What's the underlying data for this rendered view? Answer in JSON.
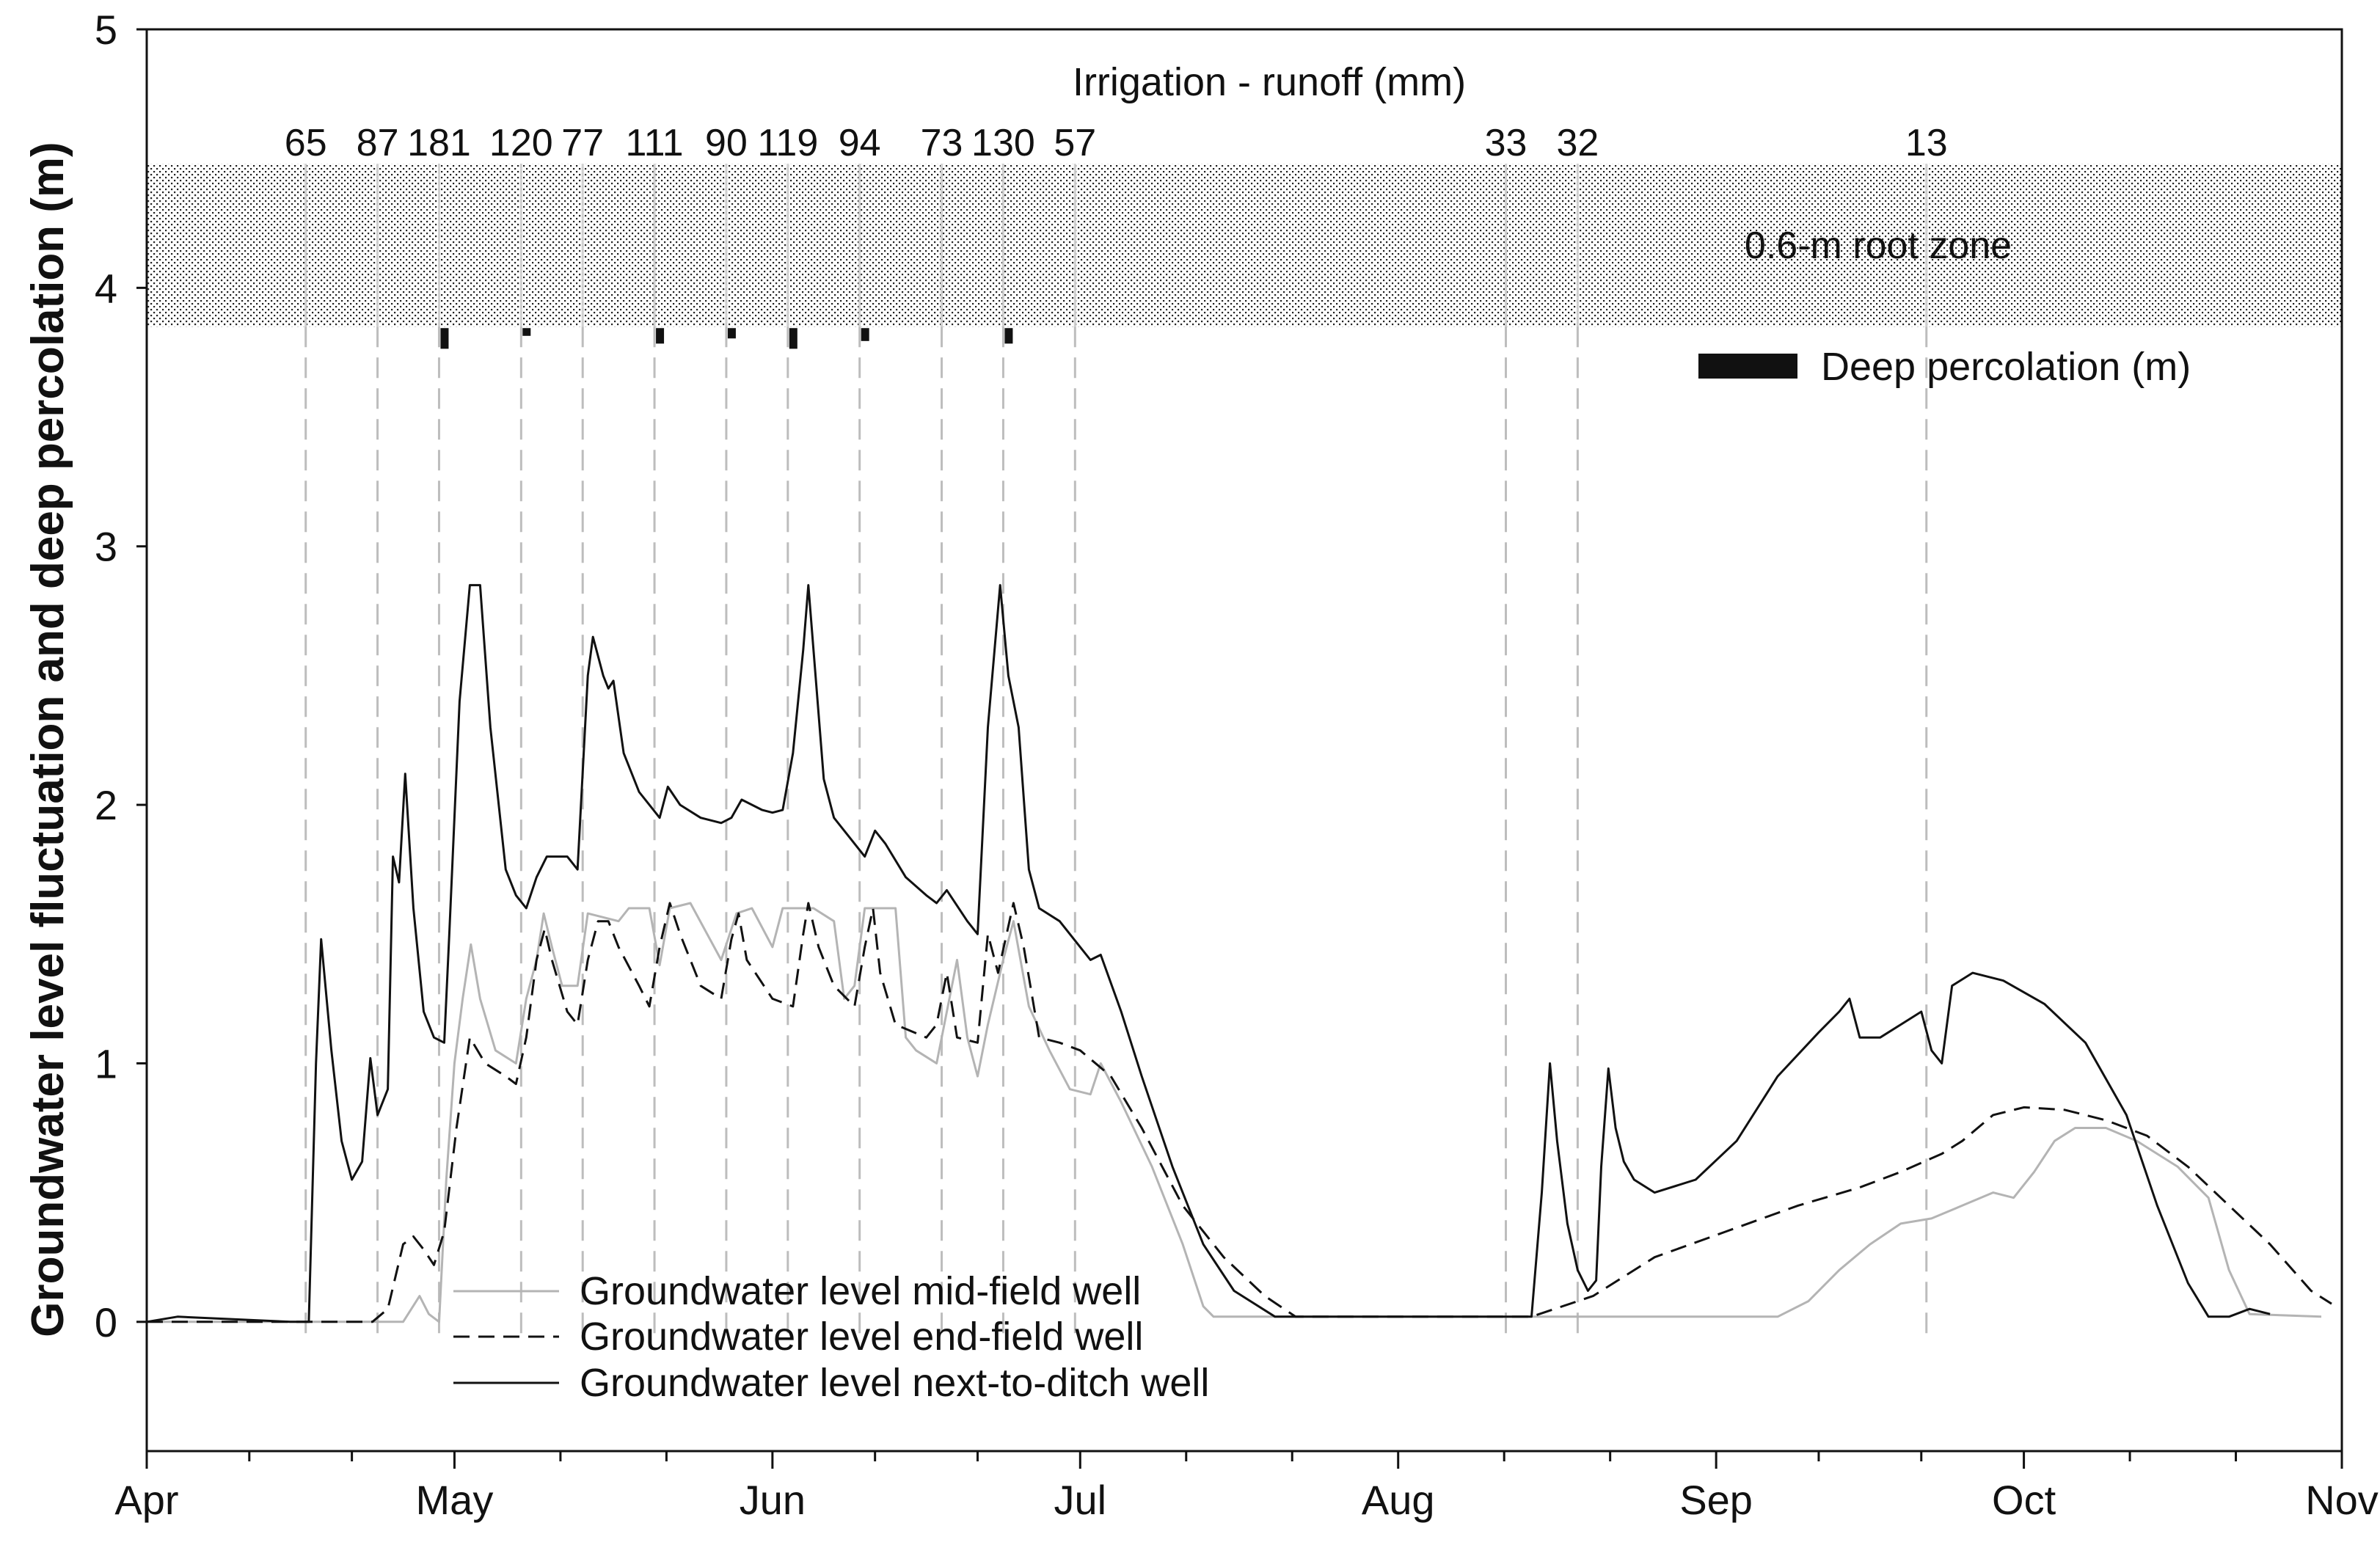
{
  "chart_data": {
    "type": "line",
    "title": "",
    "ylabel": "Groundwater level fluctuation and deep percolation (m)",
    "xlabel": "",
    "ylim": [
      -0.5,
      5
    ],
    "yticks": [
      "0",
      "1",
      "2",
      "3",
      "4",
      "5"
    ],
    "x_unit": "day of year",
    "xlim": [
      91,
      305
    ],
    "month_labels": [
      {
        "label": "Apr",
        "day": 91
      },
      {
        "label": "May",
        "day": 121
      },
      {
        "label": "Jun",
        "day": 152
      },
      {
        "label": "Jul",
        "day": 182
      },
      {
        "label": "Aug",
        "day": 213
      },
      {
        "label": "Sep",
        "day": 244
      },
      {
        "label": "Oct",
        "day": 274
      },
      {
        "label": "Nov",
        "day": 305
      }
    ],
    "root_zone": {
      "label": "0.6-m  root zone",
      "y_low": 3.85,
      "y_high": 4.48
    },
    "irrigation": {
      "header": "Irrigation - runoff (mm)",
      "events": [
        {
          "day": 106.5,
          "value": "65"
        },
        {
          "day": 113.5,
          "value": "87"
        },
        {
          "day": 119.5,
          "value": "181"
        },
        {
          "day": 127.5,
          "value": "120"
        },
        {
          "day": 133.5,
          "value": "77"
        },
        {
          "day": 140.5,
          "value": "111"
        },
        {
          "day": 147.5,
          "value": "90"
        },
        {
          "day": 153.5,
          "value": "119"
        },
        {
          "day": 160.5,
          "value": "94"
        },
        {
          "day": 168.5,
          "value": "73"
        },
        {
          "day": 174.5,
          "value": "130"
        },
        {
          "day": 181.5,
          "value": "57"
        },
        {
          "day": 223.5,
          "value": "33"
        },
        {
          "day": 230.5,
          "value": "32"
        },
        {
          "day": 264.5,
          "value": "13"
        }
      ]
    },
    "deep_percolation": {
      "label": "Deep percolation (m)",
      "bars": [
        {
          "day": 120,
          "value": 0.08
        },
        {
          "day": 128,
          "value": 0.03
        },
        {
          "day": 141,
          "value": 0.06
        },
        {
          "day": 148,
          "value": 0.04
        },
        {
          "day": 154,
          "value": 0.08
        },
        {
          "day": 161,
          "value": 0.05
        },
        {
          "day": 175,
          "value": 0.06
        }
      ]
    },
    "series": [
      {
        "name": "Groundwater level mid-field well",
        "style": "solid",
        "color": "#b4b4b4",
        "points": [
          [
            91,
            0
          ],
          [
            103,
            0
          ],
          [
            116,
            0
          ],
          [
            117.6,
            0.1
          ],
          [
            118.5,
            0.03
          ],
          [
            119.5,
            0
          ],
          [
            120.2,
            0.55
          ],
          [
            121,
            1.0
          ],
          [
            121.8,
            1.25
          ],
          [
            122.6,
            1.46
          ],
          [
            123.5,
            1.25
          ],
          [
            125,
            1.05
          ],
          [
            127,
            1.0
          ],
          [
            128,
            1.25
          ],
          [
            129,
            1.4
          ],
          [
            129.7,
            1.58
          ],
          [
            130.5,
            1.45
          ],
          [
            131.5,
            1.3
          ],
          [
            133,
            1.3
          ],
          [
            134,
            1.58
          ],
          [
            137,
            1.55
          ],
          [
            138,
            1.6
          ],
          [
            140,
            1.6
          ],
          [
            141,
            1.38
          ],
          [
            142,
            1.6
          ],
          [
            144,
            1.62
          ],
          [
            147,
            1.4
          ],
          [
            148.5,
            1.58
          ],
          [
            150,
            1.6
          ],
          [
            152,
            1.45
          ],
          [
            153,
            1.6
          ],
          [
            156,
            1.6
          ],
          [
            158,
            1.55
          ],
          [
            159,
            1.25
          ],
          [
            160,
            1.3
          ],
          [
            161,
            1.6
          ],
          [
            164,
            1.6
          ],
          [
            165,
            1.1
          ],
          [
            166,
            1.05
          ],
          [
            168,
            1.0
          ],
          [
            170,
            1.4
          ],
          [
            171,
            1.1
          ],
          [
            172,
            0.95
          ],
          [
            173,
            1.15
          ],
          [
            174.5,
            1.4
          ],
          [
            175.5,
            1.55
          ],
          [
            177,
            1.22
          ],
          [
            179,
            1.05
          ],
          [
            181,
            0.9
          ],
          [
            183,
            0.88
          ],
          [
            184,
            1.0
          ],
          [
            186,
            0.85
          ],
          [
            189,
            0.6
          ],
          [
            192,
            0.3
          ],
          [
            194,
            0.06
          ],
          [
            195,
            0.02
          ],
          [
            224,
            0.02
          ],
          [
            250,
            0.02
          ],
          [
            253,
            0.08
          ],
          [
            256,
            0.2
          ],
          [
            259,
            0.3
          ],
          [
            262,
            0.38
          ],
          [
            265,
            0.4
          ],
          [
            268,
            0.45
          ],
          [
            271,
            0.5
          ],
          [
            273,
            0.48
          ],
          [
            275,
            0.58
          ],
          [
            277,
            0.7
          ],
          [
            279,
            0.75
          ],
          [
            282,
            0.75
          ],
          [
            285,
            0.7
          ],
          [
            289,
            0.6
          ],
          [
            292,
            0.48
          ],
          [
            294,
            0.2
          ],
          [
            296,
            0.03
          ],
          [
            303,
            0.02
          ]
        ]
      },
      {
        "name": "Groundwater level end-field well",
        "style": "dashed",
        "color": "#111111",
        "points": [
          [
            91,
            0
          ],
          [
            113,
            0
          ],
          [
            114.5,
            0.05
          ],
          [
            116,
            0.3
          ],
          [
            117,
            0.33
          ],
          [
            118,
            0.28
          ],
          [
            119,
            0.22
          ],
          [
            120,
            0.35
          ],
          [
            121.2,
            0.75
          ],
          [
            122.5,
            1.1
          ],
          [
            124,
            1.0
          ],
          [
            126,
            0.95
          ],
          [
            127,
            0.92
          ],
          [
            128,
            1.1
          ],
          [
            129,
            1.4
          ],
          [
            129.8,
            1.52
          ],
          [
            130.5,
            1.4
          ],
          [
            132,
            1.2
          ],
          [
            133,
            1.15
          ],
          [
            134,
            1.4
          ],
          [
            135,
            1.55
          ],
          [
            136,
            1.55
          ],
          [
            137,
            1.45
          ],
          [
            139,
            1.3
          ],
          [
            140,
            1.22
          ],
          [
            141,
            1.45
          ],
          [
            142,
            1.62
          ],
          [
            143,
            1.5
          ],
          [
            145,
            1.3
          ],
          [
            147,
            1.25
          ],
          [
            148,
            1.48
          ],
          [
            148.7,
            1.58
          ],
          [
            149.5,
            1.4
          ],
          [
            152,
            1.25
          ],
          [
            154,
            1.22
          ],
          [
            155,
            1.5
          ],
          [
            155.5,
            1.62
          ],
          [
            156.5,
            1.45
          ],
          [
            158,
            1.3
          ],
          [
            160,
            1.22
          ],
          [
            161,
            1.45
          ],
          [
            161.8,
            1.6
          ],
          [
            162.5,
            1.35
          ],
          [
            164,
            1.15
          ],
          [
            167,
            1.1
          ],
          [
            168,
            1.15
          ],
          [
            169,
            1.35
          ],
          [
            170,
            1.1
          ],
          [
            172,
            1.08
          ],
          [
            173,
            1.5
          ],
          [
            174,
            1.35
          ],
          [
            175.5,
            1.62
          ],
          [
            176.5,
            1.45
          ],
          [
            178,
            1.1
          ],
          [
            180,
            1.08
          ],
          [
            182,
            1.05
          ],
          [
            185,
            0.95
          ],
          [
            188,
            0.75
          ],
          [
            192,
            0.45
          ],
          [
            196,
            0.25
          ],
          [
            200,
            0.1
          ],
          [
            203,
            0.02
          ],
          [
            226,
            0.02
          ],
          [
            232,
            0.1
          ],
          [
            238,
            0.25
          ],
          [
            245,
            0.35
          ],
          [
            252,
            0.45
          ],
          [
            258,
            0.52
          ],
          [
            262,
            0.58
          ],
          [
            266,
            0.65
          ],
          [
            268,
            0.7
          ],
          [
            271,
            0.8
          ],
          [
            274,
            0.83
          ],
          [
            278,
            0.82
          ],
          [
            282,
            0.78
          ],
          [
            286,
            0.72
          ],
          [
            290,
            0.6
          ],
          [
            294,
            0.45
          ],
          [
            298,
            0.3
          ],
          [
            302,
            0.12
          ],
          [
            304,
            0.07
          ]
        ]
      },
      {
        "name": "Groundwater level next-to-ditch well",
        "style": "solid",
        "color": "#111111",
        "points": [
          [
            91,
            0
          ],
          [
            94,
            0.02
          ],
          [
            105,
            0
          ],
          [
            106.8,
            0
          ],
          [
            107.5,
            1.0
          ],
          [
            108,
            1.48
          ],
          [
            109,
            1.05
          ],
          [
            110,
            0.7
          ],
          [
            111,
            0.55
          ],
          [
            112,
            0.62
          ],
          [
            112.8,
            1.02
          ],
          [
            113.5,
            0.8
          ],
          [
            114.5,
            0.9
          ],
          [
            115,
            1.8
          ],
          [
            115.6,
            1.7
          ],
          [
            116.2,
            2.12
          ],
          [
            117,
            1.6
          ],
          [
            118,
            1.2
          ],
          [
            119,
            1.1
          ],
          [
            120,
            1.08
          ],
          [
            120.5,
            1.5
          ],
          [
            121.5,
            2.4
          ],
          [
            122.5,
            2.85
          ],
          [
            123.5,
            2.85
          ],
          [
            124.5,
            2.3
          ],
          [
            126,
            1.75
          ],
          [
            127,
            1.65
          ],
          [
            128,
            1.6
          ],
          [
            129,
            1.72
          ],
          [
            130,
            1.8
          ],
          [
            132,
            1.8
          ],
          [
            133,
            1.75
          ],
          [
            134,
            2.5
          ],
          [
            134.5,
            2.65
          ],
          [
            135.5,
            2.5
          ],
          [
            136,
            2.45
          ],
          [
            136.5,
            2.48
          ],
          [
            137.5,
            2.2
          ],
          [
            139,
            2.05
          ],
          [
            140,
            2.0
          ],
          [
            141,
            1.95
          ],
          [
            141.8,
            2.07
          ],
          [
            143,
            2.0
          ],
          [
            145,
            1.95
          ],
          [
            147,
            1.93
          ],
          [
            148,
            1.95
          ],
          [
            149,
            2.02
          ],
          [
            151,
            1.98
          ],
          [
            152,
            1.97
          ],
          [
            153,
            1.98
          ],
          [
            154,
            2.2
          ],
          [
            155,
            2.6
          ],
          [
            155.5,
            2.85
          ],
          [
            156.2,
            2.5
          ],
          [
            157,
            2.1
          ],
          [
            158,
            1.95
          ],
          [
            159,
            1.9
          ],
          [
            160,
            1.85
          ],
          [
            161,
            1.8
          ],
          [
            162,
            1.9
          ],
          [
            163,
            1.85
          ],
          [
            165,
            1.72
          ],
          [
            167,
            1.65
          ],
          [
            168,
            1.62
          ],
          [
            169,
            1.67
          ],
          [
            171,
            1.55
          ],
          [
            172,
            1.5
          ],
          [
            173,
            2.3
          ],
          [
            174.2,
            2.85
          ],
          [
            175,
            2.5
          ],
          [
            176,
            2.3
          ],
          [
            177,
            1.75
          ],
          [
            178,
            1.6
          ],
          [
            180,
            1.55
          ],
          [
            182,
            1.45
          ],
          [
            183,
            1.4
          ],
          [
            184,
            1.42
          ],
          [
            186,
            1.2
          ],
          [
            188,
            0.95
          ],
          [
            191,
            0.6
          ],
          [
            194,
            0.3
          ],
          [
            197,
            0.12
          ],
          [
            201,
            0.02
          ],
          [
            226,
            0.02
          ],
          [
            227,
            0.5
          ],
          [
            227.8,
            1.0
          ],
          [
            228.5,
            0.7
          ],
          [
            229.5,
            0.38
          ],
          [
            230.5,
            0.2
          ],
          [
            231.5,
            0.12
          ],
          [
            232.3,
            0.16
          ],
          [
            232.8,
            0.6
          ],
          [
            233.5,
            0.98
          ],
          [
            234.2,
            0.75
          ],
          [
            235,
            0.62
          ],
          [
            236,
            0.55
          ],
          [
            238,
            0.5
          ],
          [
            242,
            0.55
          ],
          [
            246,
            0.7
          ],
          [
            250,
            0.95
          ],
          [
            254,
            1.12
          ],
          [
            256,
            1.2
          ],
          [
            257,
            1.25
          ],
          [
            258,
            1.1
          ],
          [
            260,
            1.1
          ],
          [
            262,
            1.15
          ],
          [
            264,
            1.2
          ],
          [
            265,
            1.05
          ],
          [
            266,
            1.0
          ],
          [
            267,
            1.3
          ],
          [
            269,
            1.35
          ],
          [
            272,
            1.32
          ],
          [
            276,
            1.23
          ],
          [
            280,
            1.08
          ],
          [
            284,
            0.8
          ],
          [
            287,
            0.45
          ],
          [
            290,
            0.15
          ],
          [
            292,
            0.02
          ],
          [
            294,
            0.02
          ],
          [
            296,
            0.05
          ],
          [
            298,
            0.03
          ]
        ]
      }
    ],
    "legend": [
      "Groundwater level mid-field well",
      "Groundwater level end-field well",
      "Groundwater level next-to-ditch well"
    ]
  }
}
